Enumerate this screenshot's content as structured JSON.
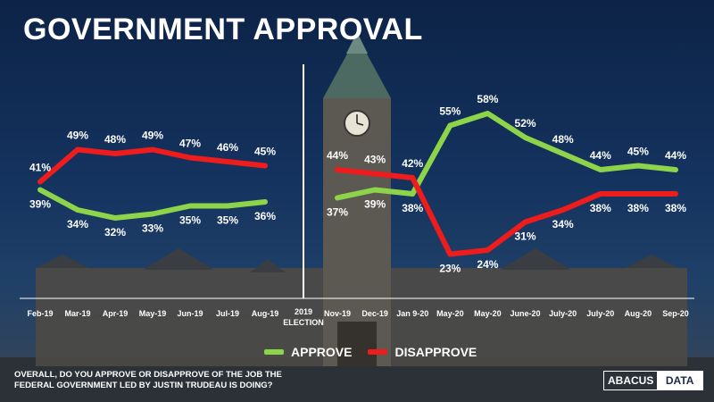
{
  "title": "GOVERNMENT APPROVAL",
  "question": "OVERALL, DO YOU APPROVE OR DISAPPROVE OF THE JOB THE FEDERAL GOVERNMENT LED BY JUSTIN TRUDEAU IS DOING?",
  "logo": {
    "part1": "ABACUS",
    "part2": "DATA"
  },
  "colors": {
    "approve": "#8ed44a",
    "disapprove": "#ee1c1c"
  },
  "chart_data": {
    "type": "line",
    "title": "GOVERNMENT APPROVAL",
    "xlabel": "",
    "ylabel": "",
    "ylim": [
      0,
      70
    ],
    "divider_label": [
      "2019",
      "ELECTION"
    ],
    "legend": [
      "APPROVE",
      "DISAPPROVE"
    ],
    "segments": [
      {
        "categories": [
          "Feb-19",
          "Mar-19",
          "Apr-19",
          "May-19",
          "Jun-19",
          "Jul-19",
          "Aug-19"
        ],
        "series": [
          {
            "name": "APPROVE",
            "values": [
              39,
              34,
              32,
              33,
              35,
              35,
              36
            ]
          },
          {
            "name": "DISAPPROVE",
            "values": [
              41,
              49,
              48,
              49,
              47,
              46,
              45
            ]
          }
        ]
      },
      {
        "categories": [
          "Nov-19",
          "Dec-19",
          "Jan 9-20",
          "May-20",
          "May-20",
          "June-20",
          "July-20",
          "July-20",
          "Aug-20",
          "Sep-20"
        ],
        "series": [
          {
            "name": "APPROVE",
            "values": [
              37,
              39,
              38,
              55,
              58,
              52,
              48,
              44,
              45,
              44
            ]
          },
          {
            "name": "DISAPPROVE",
            "values": [
              44,
              43,
              42,
              23,
              24,
              31,
              34,
              38,
              38,
              38
            ]
          }
        ]
      }
    ]
  }
}
